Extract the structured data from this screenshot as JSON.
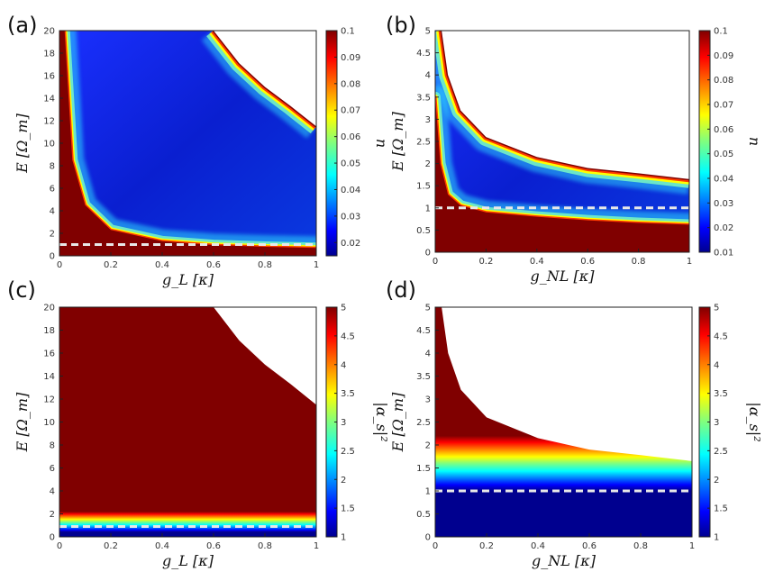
{
  "panels": [
    {
      "letter": "(a)"
    },
    {
      "letter": "(b)"
    },
    {
      "letter": "(c)"
    },
    {
      "letter": "(d)"
    }
  ],
  "colors": {
    "dashed_line": "#e8e8e8",
    "saturated": "#800000",
    "background": "#ffffff"
  },
  "chart_data": [
    {
      "type": "heatmap",
      "panel": "(a)",
      "xlabel": "g_L [κ]",
      "ylabel": "E [Ω_m]",
      "colorbar_label": "n",
      "xlim": [
        0,
        1
      ],
      "ylim": [
        0,
        20
      ],
      "xticks": [
        "0",
        "0.2",
        "0.4",
        "0.6",
        "0.8",
        "1"
      ],
      "yticks": [
        "0",
        "2",
        "4",
        "6",
        "8",
        "10",
        "12",
        "14",
        "16",
        "18",
        "20"
      ],
      "colorbar_range": [
        0.015,
        0.1
      ],
      "colorbar_ticks": [
        "0.02",
        "0.03",
        "0.04",
        "0.05",
        "0.06",
        "0.07",
        "0.08",
        "0.09",
        "0.1"
      ],
      "dashed_line_y": 1,
      "lower_boundary_points": [
        [
          0.02,
          20
        ],
        [
          0.05,
          8.5
        ],
        [
          0.1,
          4.5
        ],
        [
          0.2,
          2.3
        ],
        [
          0.4,
          1.3
        ],
        [
          0.6,
          0.95
        ],
        [
          0.8,
          0.8
        ],
        [
          1,
          0.7
        ]
      ],
      "stability_boundary_points": [
        [
          0.6,
          20
        ],
        [
          0.7,
          17.1
        ],
        [
          0.8,
          15
        ],
        [
          0.9,
          13.3
        ],
        [
          1,
          11.5
        ]
      ]
    },
    {
      "type": "heatmap",
      "panel": "(b)",
      "xlabel": "g_NL [κ]",
      "ylabel": "E [Ω_m]",
      "colorbar_label": "n",
      "xlim": [
        0,
        1
      ],
      "ylim": [
        0,
        5
      ],
      "xticks": [
        "0",
        "0.2",
        "0.4",
        "0.6",
        "0.8",
        "1"
      ],
      "yticks": [
        "0",
        "0.5",
        "1",
        "1.5",
        "2",
        "2.5",
        "3",
        "3.5",
        "4",
        "4.5",
        "5"
      ],
      "colorbar_range": [
        0.01,
        0.1
      ],
      "colorbar_ticks": [
        "0.01",
        "0.02",
        "0.03",
        "0.04",
        "0.05",
        "0.06",
        "0.07",
        "0.08",
        "0.09",
        "0.1"
      ],
      "dashed_line_y": 1,
      "lower_boundary_points": [
        [
          0,
          3.5
        ],
        [
          0.02,
          2.0
        ],
        [
          0.05,
          1.3
        ],
        [
          0.1,
          1.05
        ],
        [
          0.2,
          0.9
        ],
        [
          0.4,
          0.8
        ],
        [
          0.6,
          0.72
        ],
        [
          0.8,
          0.66
        ],
        [
          1,
          0.62
        ]
      ],
      "stability_boundary_points": [
        [
          0.025,
          5
        ],
        [
          0.05,
          4.0
        ],
        [
          0.1,
          3.2
        ],
        [
          0.2,
          2.6
        ],
        [
          0.4,
          2.15
        ],
        [
          0.6,
          1.9
        ],
        [
          0.8,
          1.78
        ],
        [
          1,
          1.65
        ]
      ]
    },
    {
      "type": "heatmap",
      "panel": "(c)",
      "xlabel": "g_L [κ]",
      "ylabel": "E [Ω_m]",
      "colorbar_label": "|α_s|²",
      "xlim": [
        0,
        1
      ],
      "ylim": [
        0,
        20
      ],
      "xticks": [
        "0",
        "0.2",
        "0.4",
        "0.6",
        "0.8",
        "1"
      ],
      "yticks": [
        "0",
        "2",
        "4",
        "6",
        "8",
        "10",
        "12",
        "14",
        "16",
        "18",
        "20"
      ],
      "colorbar_range": [
        1,
        5
      ],
      "colorbar_ticks": [
        "1",
        "1.5",
        "2",
        "2.5",
        "3",
        "3.5",
        "4",
        "4.5",
        "5"
      ],
      "dashed_line_y": 0.9,
      "transition_band_y": [
        0.4,
        2.2
      ],
      "stability_boundary_points": [
        [
          0.6,
          20
        ],
        [
          0.7,
          17.1
        ],
        [
          0.8,
          15
        ],
        [
          0.9,
          13.3
        ],
        [
          1,
          11.5
        ]
      ]
    },
    {
      "type": "heatmap",
      "panel": "(d)",
      "xlabel": "g_NL [κ]",
      "ylabel": "E [Ω_m]",
      "colorbar_label": "|α_s|²",
      "xlim": [
        0,
        1
      ],
      "ylim": [
        0,
        5
      ],
      "xticks": [
        "0",
        "0.2",
        "0.4",
        "0.6",
        "0.8",
        "1"
      ],
      "yticks": [
        "0",
        "0.5",
        "1",
        "1.5",
        "2",
        "2.5",
        "3",
        "3.5",
        "4",
        "4.5",
        "5"
      ],
      "colorbar_range": [
        1,
        5
      ],
      "colorbar_ticks": [
        "1",
        "1.5",
        "2",
        "2.5",
        "3",
        "3.5",
        "4",
        "4.5",
        "5"
      ],
      "dashed_line_y": 1,
      "transition_band_y": [
        1.0,
        2.2
      ],
      "stability_boundary_points": [
        [
          0.025,
          5
        ],
        [
          0.05,
          4.0
        ],
        [
          0.1,
          3.2
        ],
        [
          0.2,
          2.6
        ],
        [
          0.4,
          2.15
        ],
        [
          0.6,
          1.9
        ],
        [
          0.8,
          1.78
        ],
        [
          1,
          1.65
        ]
      ]
    }
  ]
}
